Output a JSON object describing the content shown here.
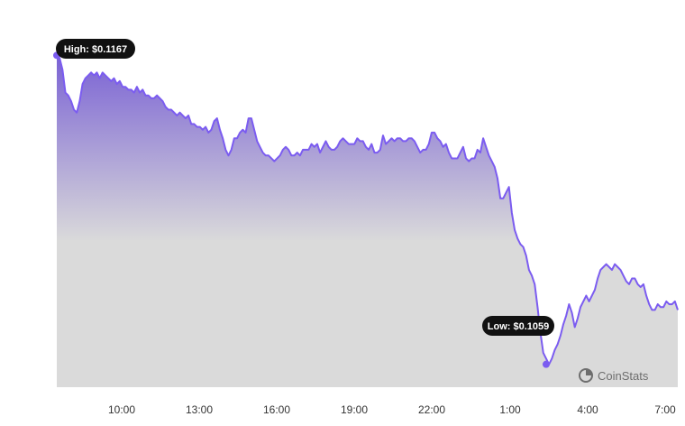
{
  "colors": {
    "line": "#7b5cf0",
    "area_top": "#7a62d4",
    "area_bottom": "#dadada",
    "tooltip_bg": "#111111",
    "brand": "#6e6e6e"
  },
  "brand": {
    "name": "CoinStats",
    "icon": "coinstats-logo-icon"
  },
  "chart_data": {
    "type": "area",
    "title": "",
    "xlabel": "",
    "ylabel": "",
    "x_ticks": [
      "10:00",
      "13:00",
      "16:00",
      "19:00",
      "22:00",
      "1:00",
      "4:00",
      "7:00"
    ],
    "ylim": [
      0.1051,
      0.1169
    ],
    "grid": false,
    "legend": "none",
    "annotations": {
      "high": {
        "label": "High: $0.1167",
        "value": 0.1167,
        "index": 0
      },
      "low": {
        "label": "Low: $0.1059",
        "value": 0.1059,
        "index": 171
      }
    },
    "series": [
      {
        "values": [
          0.1167,
          0.1166,
          0.1162,
          0.1154,
          0.1153,
          0.1151,
          0.1148,
          0.1147,
          0.1151,
          0.1157,
          0.1159,
          0.116,
          0.1161,
          0.116,
          0.1161,
          0.1159,
          0.1161,
          0.116,
          0.1159,
          0.1158,
          0.1159,
          0.1157,
          0.1158,
          0.1156,
          0.1156,
          0.1155,
          0.1155,
          0.1154,
          0.1156,
          0.1154,
          0.1155,
          0.1153,
          0.1153,
          0.1152,
          0.1152,
          0.1153,
          0.1152,
          0.1151,
          0.1149,
          0.1148,
          0.1148,
          0.1147,
          0.1146,
          0.1147,
          0.1146,
          0.1145,
          0.1146,
          0.1143,
          0.1143,
          0.1142,
          0.1142,
          0.1141,
          0.1142,
          0.114,
          0.1141,
          0.1144,
          0.1145,
          0.1141,
          0.1138,
          0.1134,
          0.1132,
          0.1134,
          0.1138,
          0.1138,
          0.114,
          0.1141,
          0.114,
          0.1145,
          0.1145,
          0.1141,
          0.1137,
          0.1135,
          0.1133,
          0.1132,
          0.1132,
          0.1131,
          0.113,
          0.1131,
          0.1132,
          0.1134,
          0.1135,
          0.1134,
          0.1132,
          0.1132,
          0.1133,
          0.1132,
          0.1134,
          0.1134,
          0.1134,
          0.1136,
          0.1135,
          0.1136,
          0.1133,
          0.1135,
          0.1137,
          0.1135,
          0.1134,
          0.1134,
          0.1135,
          0.1137,
          0.1138,
          0.1137,
          0.1136,
          0.1136,
          0.1136,
          0.1138,
          0.1137,
          0.1137,
          0.1135,
          0.1134,
          0.1136,
          0.1133,
          0.1133,
          0.1134,
          0.1139,
          0.1136,
          0.1137,
          0.1138,
          0.1137,
          0.1138,
          0.1138,
          0.1137,
          0.1137,
          0.1138,
          0.1138,
          0.1137,
          0.1135,
          0.1133,
          0.1134,
          0.1134,
          0.1136,
          0.114,
          0.114,
          0.1138,
          0.1137,
          0.1135,
          0.1136,
          0.1133,
          0.1131,
          0.1131,
          0.1131,
          0.1133,
          0.1135,
          0.1131,
          0.113,
          0.1131,
          0.1131,
          0.1134,
          0.1133,
          0.1138,
          0.1135,
          0.1132,
          0.113,
          0.1128,
          0.1124,
          0.1117,
          0.1117,
          0.1119,
          0.1121,
          0.1112,
          0.1106,
          0.1103,
          0.1101,
          0.11,
          0.1097,
          0.1092,
          0.109,
          0.1087,
          0.1079,
          0.107,
          0.1063,
          0.1061,
          0.1059,
          0.1061,
          0.1064,
          0.1066,
          0.1069,
          0.1073,
          0.1076,
          0.108,
          0.1077,
          0.1072,
          0.1075,
          0.1079,
          0.1081,
          0.1083,
          0.1081,
          0.1083,
          0.1085,
          0.1089,
          0.1092,
          0.1093,
          0.1094,
          0.1093,
          0.1092,
          0.1094,
          0.1093,
          0.1092,
          0.109,
          0.1088,
          0.1087,
          0.1089,
          0.1089,
          0.1087,
          0.1086,
          0.1087,
          0.1083,
          0.108,
          0.1078,
          0.1078,
          0.108,
          0.1079,
          0.1079,
          0.1081,
          0.108,
          0.108,
          0.1081,
          0.1078
        ]
      }
    ]
  }
}
